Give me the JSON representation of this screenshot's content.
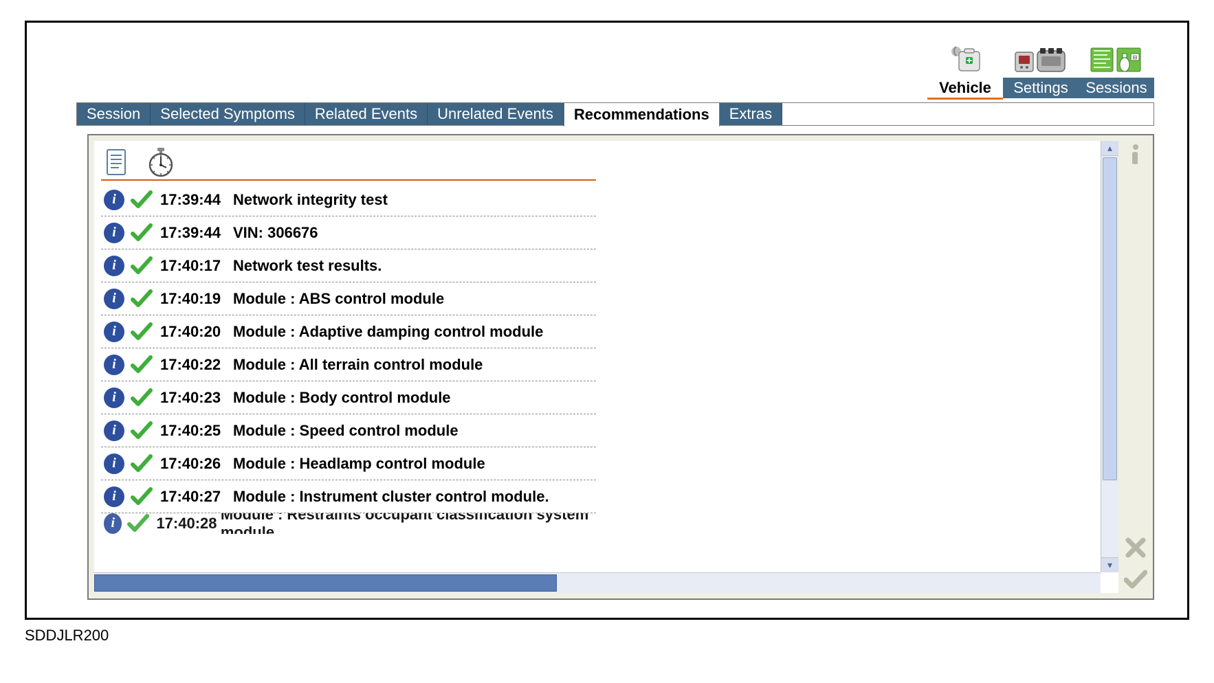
{
  "footer_code": "SDDJLR200",
  "topnav": {
    "items": [
      {
        "label": "Vehicle",
        "icon": "medkit",
        "active": true
      },
      {
        "label": "Settings",
        "icon": "device",
        "active": false
      },
      {
        "label": "Sessions",
        "icon": "sessions",
        "active": false
      }
    ],
    "active_underline_color": "#e36f1e",
    "inactive_bg": "#446a8a",
    "inactive_fg": "#ffffff"
  },
  "tabs": {
    "items": [
      {
        "label": "Session",
        "active": false
      },
      {
        "label": "Selected Symptoms",
        "active": false
      },
      {
        "label": "Related Events",
        "active": false
      },
      {
        "label": "Unrelated Events",
        "active": false
      },
      {
        "label": "Recommendations",
        "active": true
      },
      {
        "label": "Extras",
        "active": false
      }
    ],
    "bg": "#3f6584",
    "fg": "#ffffff",
    "active_fg": "#000000"
  },
  "list": {
    "header_rule_color": "#d65a12",
    "row_divider_color": "#888888",
    "info_icon_bg": "#2e4f9e",
    "check_color": "#3fae3a",
    "rows": [
      {
        "time": "17:39:44",
        "desc": "Network integrity test"
      },
      {
        "time": "17:39:44",
        "desc": "VIN: 306676"
      },
      {
        "time": "17:40:17",
        "desc": "Network test results."
      },
      {
        "time": "17:40:19",
        "desc": "Module : ABS control module"
      },
      {
        "time": "17:40:20",
        "desc": "Module : Adaptive damping control module"
      },
      {
        "time": "17:40:22",
        "desc": "Module : All terrain control module"
      },
      {
        "time": "17:40:23",
        "desc": "Module : Body control module"
      },
      {
        "time": "17:40:25",
        "desc": "Module : Speed control module"
      },
      {
        "time": "17:40:26",
        "desc": "Module : Headlamp control module"
      },
      {
        "time": "17:40:27",
        "desc": "Module : Instrument cluster control module."
      }
    ],
    "partial_row": {
      "time": "17:40:28",
      "desc": "Module : Restraints occupant classification system module"
    }
  },
  "scrollbar": {
    "vertical_thumb_color": "#c6d3ee",
    "horizontal_thumb_color": "#5b7db6",
    "track_color": "#e8ecf5"
  },
  "panel_bg": "#efefe3",
  "action_icons": {
    "top": "info",
    "bottom": [
      "cancel",
      "confirm"
    ],
    "disabled_color": "#b7b7a8"
  }
}
